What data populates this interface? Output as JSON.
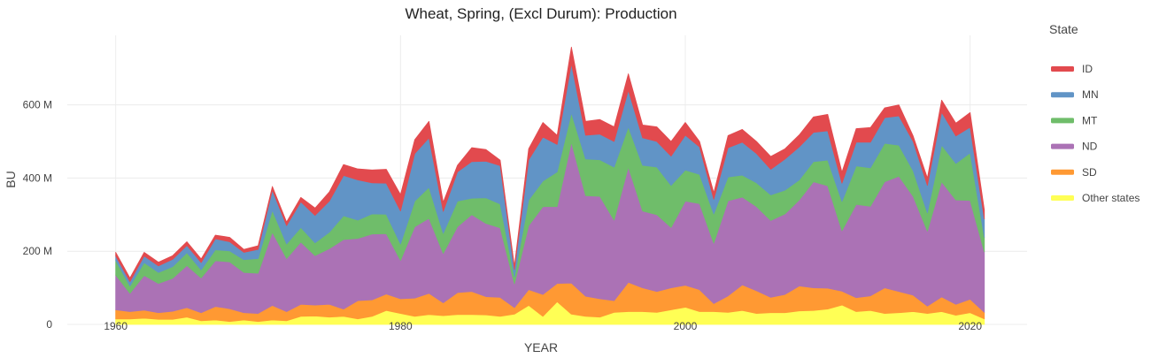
{
  "chart_data": {
    "type": "area",
    "stacked": true,
    "title": "Wheat, Spring, (Excl Durum): Production",
    "xlabel": "YEAR",
    "ylabel": "BU",
    "xlim": [
      1956.6,
      2024.0
    ],
    "ylim": [
      0,
      790000000
    ],
    "x_ticks": [
      {
        "value": 1960,
        "label": "1960"
      },
      {
        "value": 1980,
        "label": "1980"
      },
      {
        "value": 2000,
        "label": "2000"
      },
      {
        "value": 2020,
        "label": "2020"
      }
    ],
    "y_ticks": [
      {
        "value": 0,
        "label": "0"
      },
      {
        "value": 200000000,
        "label": "200 M"
      },
      {
        "value": 400000000,
        "label": "400 M"
      },
      {
        "value": 600000000,
        "label": "600 M"
      }
    ],
    "grid": true,
    "legend_title": "State",
    "legend_position": "right",
    "x": [
      1960,
      1961,
      1962,
      1963,
      1964,
      1965,
      1966,
      1967,
      1968,
      1969,
      1970,
      1971,
      1972,
      1973,
      1974,
      1975,
      1976,
      1977,
      1978,
      1979,
      1980,
      1981,
      1982,
      1983,
      1984,
      1985,
      1986,
      1987,
      1988,
      1989,
      1990,
      1991,
      1992,
      1993,
      1994,
      1995,
      1996,
      1997,
      1998,
      1999,
      2000,
      2001,
      2002,
      2003,
      2004,
      2005,
      2006,
      2007,
      2008,
      2009,
      2010,
      2011,
      2012,
      2013,
      2014,
      2015,
      2016,
      2017,
      2018,
      2019,
      2020,
      2021
    ],
    "series": [
      {
        "name": "Other states",
        "color": "#ffff55",
        "values": [
          15000000,
          15000000,
          17000000,
          14000000,
          14000000,
          20000000,
          10000000,
          12000000,
          8000000,
          12000000,
          8000000,
          12000000,
          10000000,
          22000000,
          23000000,
          20000000,
          22000000,
          15000000,
          22000000,
          38000000,
          30000000,
          22000000,
          27000000,
          24000000,
          27000000,
          27000000,
          26000000,
          22000000,
          28000000,
          52000000,
          22000000,
          62000000,
          28000000,
          22000000,
          20000000,
          33000000,
          35000000,
          35000000,
          33000000,
          40000000,
          47000000,
          35000000,
          35000000,
          33000000,
          38000000,
          30000000,
          32000000,
          32000000,
          37000000,
          38000000,
          42000000,
          53000000,
          35000000,
          38000000,
          30000000,
          32000000,
          35000000,
          30000000,
          35000000,
          25000000,
          32000000,
          15000000
        ]
      },
      {
        "name": "SD",
        "color": "#ff9933",
        "values": [
          25000000,
          20000000,
          22000000,
          18000000,
          22000000,
          26000000,
          22000000,
          37000000,
          35000000,
          20000000,
          22000000,
          40000000,
          25000000,
          33000000,
          30000000,
          35000000,
          20000000,
          50000000,
          45000000,
          45000000,
          40000000,
          50000000,
          58000000,
          35000000,
          60000000,
          63000000,
          50000000,
          52000000,
          18000000,
          43000000,
          60000000,
          50000000,
          85000000,
          55000000,
          50000000,
          32000000,
          80000000,
          65000000,
          57000000,
          60000000,
          60000000,
          60000000,
          22000000,
          45000000,
          70000000,
          62000000,
          42000000,
          50000000,
          68000000,
          62000000,
          57000000,
          38000000,
          38000000,
          40000000,
          70000000,
          58000000,
          45000000,
          20000000,
          40000000,
          30000000,
          37000000,
          18000000
        ]
      },
      {
        "name": "ND",
        "color": "#ab72b5",
        "values": [
          95000000,
          50000000,
          95000000,
          80000000,
          90000000,
          115000000,
          95000000,
          125000000,
          128000000,
          110000000,
          110000000,
          200000000,
          145000000,
          170000000,
          135000000,
          152000000,
          190000000,
          170000000,
          180000000,
          165000000,
          105000000,
          195000000,
          205000000,
          135000000,
          180000000,
          210000000,
          200000000,
          190000000,
          65000000,
          175000000,
          240000000,
          210000000,
          385000000,
          275000000,
          280000000,
          220000000,
          315000000,
          210000000,
          210000000,
          165000000,
          230000000,
          235000000,
          165000000,
          260000000,
          240000000,
          230000000,
          210000000,
          220000000,
          235000000,
          290000000,
          280000000,
          165000000,
          255000000,
          245000000,
          290000000,
          315000000,
          270000000,
          205000000,
          315000000,
          285000000,
          270000000,
          165000000
        ]
      },
      {
        "name": "MT",
        "color": "#6fbd6a",
        "values": [
          40000000,
          20000000,
          35000000,
          30000000,
          32000000,
          35000000,
          22000000,
          30000000,
          30000000,
          35000000,
          40000000,
          60000000,
          40000000,
          40000000,
          35000000,
          45000000,
          65000000,
          50000000,
          55000000,
          53000000,
          45000000,
          70000000,
          85000000,
          55000000,
          70000000,
          45000000,
          70000000,
          65000000,
          19000000,
          70000000,
          70000000,
          95000000,
          80000000,
          100000000,
          100000000,
          145000000,
          110000000,
          125000000,
          130000000,
          115000000,
          85000000,
          80000000,
          80000000,
          65000000,
          60000000,
          65000000,
          70000000,
          65000000,
          55000000,
          55000000,
          70000000,
          80000000,
          105000000,
          105000000,
          105000000,
          85000000,
          70000000,
          50000000,
          100000000,
          100000000,
          130000000,
          40000000
        ]
      },
      {
        "name": "MN",
        "color": "#6194c6",
        "values": [
          12000000,
          12000000,
          18000000,
          18000000,
          20000000,
          20000000,
          20000000,
          30000000,
          25000000,
          20000000,
          25000000,
          55000000,
          50000000,
          70000000,
          75000000,
          85000000,
          110000000,
          110000000,
          85000000,
          85000000,
          90000000,
          130000000,
          135000000,
          60000000,
          80000000,
          100000000,
          100000000,
          105000000,
          20000000,
          110000000,
          120000000,
          75000000,
          135000000,
          65000000,
          70000000,
          70000000,
          100000000,
          75000000,
          70000000,
          80000000,
          95000000,
          75000000,
          40000000,
          80000000,
          90000000,
          80000000,
          70000000,
          85000000,
          90000000,
          80000000,
          80000000,
          50000000,
          65000000,
          70000000,
          70000000,
          80000000,
          80000000,
          75000000,
          90000000,
          75000000,
          70000000,
          50000000
        ]
      },
      {
        "name": "ID",
        "color": "#e24a4e",
        "values": [
          10000000,
          10000000,
          10000000,
          10000000,
          10000000,
          10000000,
          10000000,
          10000000,
          12000000,
          8000000,
          10000000,
          10000000,
          10000000,
          12000000,
          20000000,
          25000000,
          30000000,
          30000000,
          35000000,
          38000000,
          45000000,
          38000000,
          45000000,
          25000000,
          18000000,
          38000000,
          32000000,
          15000000,
          10000000,
          30000000,
          40000000,
          25000000,
          45000000,
          38000000,
          40000000,
          40000000,
          45000000,
          35000000,
          40000000,
          40000000,
          35000000,
          15000000,
          18000000,
          33000000,
          35000000,
          33000000,
          35000000,
          28000000,
          33000000,
          42000000,
          45000000,
          30000000,
          37000000,
          40000000,
          27000000,
          30000000,
          15000000,
          20000000,
          33000000,
          35000000,
          40000000,
          25000000
        ]
      }
    ]
  }
}
